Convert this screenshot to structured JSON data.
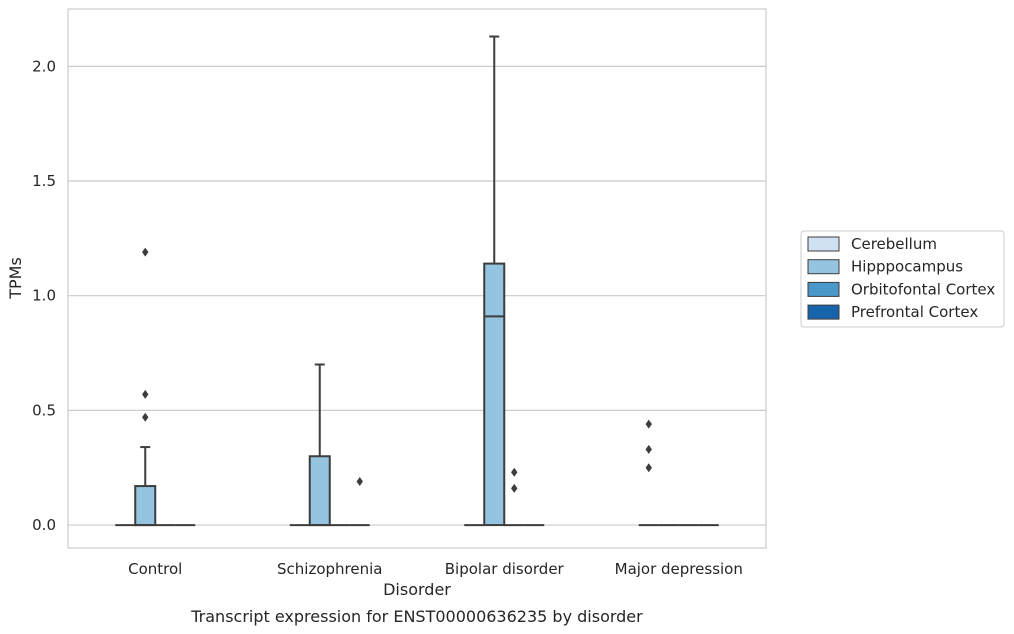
{
  "chart_data": {
    "type": "box",
    "xlabel": "Disorder",
    "ylabel": "TPMs",
    "caption": "Transcript expression for ENST00000636235 by disorder",
    "ylim": [
      -0.1,
      2.25
    ],
    "yticks": [
      0.0,
      0.5,
      1.0,
      1.5,
      2.0
    ],
    "ytick_labels": [
      "0.0",
      "0.5",
      "1.0",
      "1.5",
      "2.0"
    ],
    "grid": "horizontal",
    "legend_position": "right",
    "categories": [
      "Control",
      "Schizophrenia",
      "Bipolar disorder",
      "Major depression"
    ],
    "series": [
      {
        "name": "Cerebellum",
        "color": "#d0e1f2",
        "boxes": [
          {
            "q1": 0,
            "median": 0,
            "q3": 0,
            "whisker_low": 0,
            "whisker_high": 0,
            "outliers": []
          },
          {
            "q1": 0,
            "median": 0,
            "q3": 0,
            "whisker_low": 0,
            "whisker_high": 0,
            "outliers": []
          },
          {
            "q1": 0,
            "median": 0,
            "q3": 0,
            "whisker_low": 0,
            "whisker_high": 0,
            "outliers": []
          },
          {
            "q1": 0,
            "median": 0,
            "q3": 0,
            "whisker_low": 0,
            "whisker_high": 0,
            "outliers": [
              0.25,
              0.33,
              0.44
            ]
          }
        ]
      },
      {
        "name": "Hipppocampus",
        "color": "#94c4df",
        "boxes": [
          {
            "q1": 0,
            "median": 0,
            "q3": 0.17,
            "whisker_low": 0,
            "whisker_high": 0.34,
            "outliers": [
              0.47,
              0.57,
              1.19
            ]
          },
          {
            "q1": 0,
            "median": 0,
            "q3": 0.3,
            "whisker_low": 0,
            "whisker_high": 0.7,
            "outliers": []
          },
          {
            "q1": 0,
            "median": 0.91,
            "q3": 1.14,
            "whisker_low": 0,
            "whisker_high": 2.13,
            "outliers": []
          },
          {
            "q1": 0,
            "median": 0,
            "q3": 0,
            "whisker_low": 0,
            "whisker_high": 0,
            "outliers": []
          }
        ]
      },
      {
        "name": "Orbitofontal Cortex",
        "color": "#4a98c9",
        "boxes": [
          {
            "q1": 0,
            "median": 0,
            "q3": 0,
            "whisker_low": 0,
            "whisker_high": 0,
            "outliers": []
          },
          {
            "q1": 0,
            "median": 0,
            "q3": 0,
            "whisker_low": 0,
            "whisker_high": 0,
            "outliers": []
          },
          {
            "q1": 0,
            "median": 0,
            "q3": 0,
            "whisker_low": 0,
            "whisker_high": 0,
            "outliers": [
              0.16,
              0.23
            ]
          },
          {
            "q1": 0,
            "median": 0,
            "q3": 0,
            "whisker_low": 0,
            "whisker_high": 0,
            "outliers": []
          }
        ]
      },
      {
        "name": "Prefrontal Cortex",
        "color": "#1764ab",
        "boxes": [
          {
            "q1": 0,
            "median": 0,
            "q3": 0,
            "whisker_low": 0,
            "whisker_high": 0,
            "outliers": []
          },
          {
            "q1": 0,
            "median": 0,
            "q3": 0,
            "whisker_low": 0,
            "whisker_high": 0,
            "outliers": [
              0.19
            ]
          },
          {
            "q1": 0,
            "median": 0,
            "q3": 0,
            "whisker_low": 0,
            "whisker_high": 0,
            "outliers": []
          },
          {
            "q1": 0,
            "median": 0,
            "q3": 0,
            "whisker_low": 0,
            "whisker_high": 0,
            "outliers": []
          }
        ]
      }
    ]
  }
}
